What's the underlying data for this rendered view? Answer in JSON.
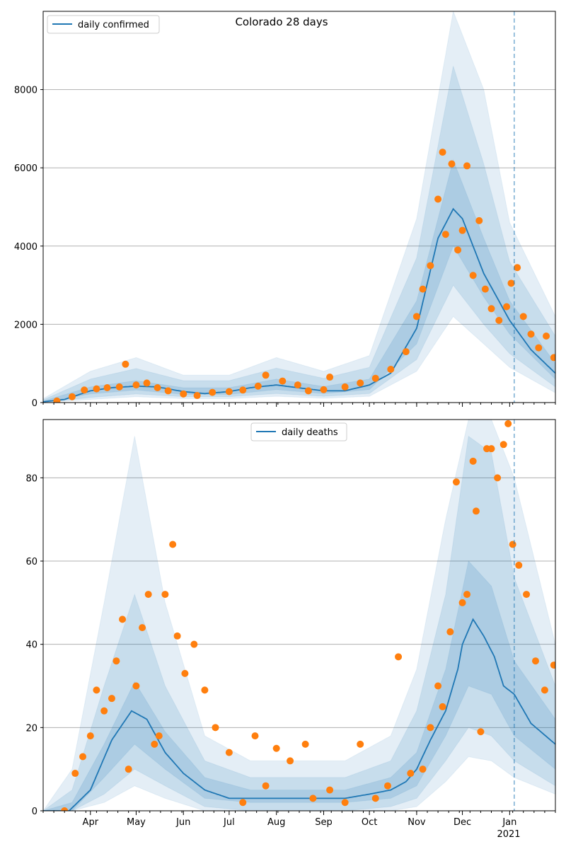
{
  "figure": {
    "title": "Colorado 28 days",
    "colors": {
      "line": "#1f77b4",
      "points": "#ff7f0e",
      "band": "#1f77b4",
      "grid": "#b0b0b0",
      "projection": "#1f77b4"
    }
  },
  "chart_data": [
    {
      "type": "line",
      "title": "Colorado 28 days",
      "xlabel": "",
      "ylabel": "",
      "x_range": [
        "2020-03-01",
        "2021-01-31"
      ],
      "ylim": [
        0,
        10000
      ],
      "yticks": [
        0,
        2000,
        4000,
        6000,
        8000
      ],
      "xticks_shown": false,
      "grid": "y",
      "legend": {
        "placement": "top-left",
        "entries": [
          "daily confirmed"
        ]
      },
      "projection_start": "2021-01-04",
      "series": [
        {
          "name": "daily confirmed",
          "kind": "line",
          "x": [
            "2020-03-01",
            "2020-03-15",
            "2020-04-01",
            "2020-04-15",
            "2020-05-01",
            "2020-05-15",
            "2020-06-01",
            "2020-06-15",
            "2020-07-01",
            "2020-07-15",
            "2020-08-01",
            "2020-08-15",
            "2020-09-01",
            "2020-09-15",
            "2020-10-01",
            "2020-10-15",
            "2020-11-01",
            "2020-11-15",
            "2020-11-25",
            "2020-12-01",
            "2020-12-15",
            "2021-01-01",
            "2021-01-15",
            "2021-01-31"
          ],
          "values": [
            20,
            80,
            300,
            380,
            420,
            400,
            280,
            230,
            280,
            380,
            450,
            380,
            300,
            300,
            450,
            750,
            1900,
            4200,
            4950,
            4700,
            3300,
            2100,
            1350,
            750
          ]
        },
        {
          "name": "",
          "kind": "band-50",
          "x": [
            "2020-03-01",
            "2020-04-01",
            "2020-05-01",
            "2020-06-01",
            "2020-07-01",
            "2020-08-01",
            "2020-09-01",
            "2020-10-01",
            "2020-11-01",
            "2020-11-25",
            "2020-12-15",
            "2021-01-01",
            "2021-01-31"
          ],
          "low": [
            10,
            220,
            320,
            210,
            210,
            330,
            230,
            330,
            1500,
            4000,
            2700,
            1750,
            600
          ],
          "high": [
            40,
            400,
            560,
            380,
            380,
            600,
            410,
            600,
            2600,
            6200,
            4200,
            2600,
            1000
          ]
        },
        {
          "name": "",
          "kind": "band-90",
          "x": [
            "2020-03-01",
            "2020-04-01",
            "2020-05-01",
            "2020-06-01",
            "2020-07-01",
            "2020-08-01",
            "2020-09-01",
            "2020-10-01",
            "2020-11-01",
            "2020-11-25",
            "2020-12-15",
            "2021-01-01",
            "2021-01-31"
          ],
          "low": [
            0,
            130,
            220,
            150,
            150,
            230,
            160,
            230,
            1100,
            3000,
            2000,
            1250,
            400
          ],
          "high": [
            70,
            600,
            870,
            560,
            560,
            880,
            620,
            900,
            3700,
            8600,
            6100,
            3600,
            1700
          ]
        },
        {
          "name": "",
          "kind": "band-98",
          "x": [
            "2020-03-01",
            "2020-04-01",
            "2020-05-01",
            "2020-06-01",
            "2020-07-01",
            "2020-08-01",
            "2020-09-01",
            "2020-10-01",
            "2020-11-01",
            "2020-11-25",
            "2020-12-15",
            "2021-01-01",
            "2021-01-31"
          ],
          "low": [
            0,
            80,
            150,
            100,
            100,
            160,
            110,
            160,
            800,
            2200,
            1500,
            900,
            250
          ],
          "high": [
            100,
            800,
            1150,
            700,
            700,
            1150,
            800,
            1200,
            4700,
            10000,
            8000,
            4600,
            2200
          ]
        },
        {
          "name": "",
          "kind": "scatter",
          "x": [
            "2020-03-10",
            "2020-03-20",
            "2020-03-28",
            "2020-04-05",
            "2020-04-12",
            "2020-04-20",
            "2020-04-24",
            "2020-05-01",
            "2020-05-08",
            "2020-05-15",
            "2020-05-22",
            "2020-06-01",
            "2020-06-10",
            "2020-06-20",
            "2020-07-01",
            "2020-07-10",
            "2020-07-20",
            "2020-07-25",
            "2020-08-05",
            "2020-08-15",
            "2020-08-22",
            "2020-09-01",
            "2020-09-05",
            "2020-09-15",
            "2020-09-25",
            "2020-10-05",
            "2020-10-15",
            "2020-10-25",
            "2020-11-01",
            "2020-11-05",
            "2020-11-10",
            "2020-11-15",
            "2020-11-18",
            "2020-11-20",
            "2020-11-24",
            "2020-11-28",
            "2020-12-01",
            "2020-12-04",
            "2020-12-08",
            "2020-12-12",
            "2020-12-16",
            "2020-12-20",
            "2020-12-25",
            "2020-12-30",
            "2021-01-02",
            "2021-01-06",
            "2021-01-10",
            "2021-01-15",
            "2021-01-20",
            "2021-01-25",
            "2021-01-30"
          ],
          "values": [
            40,
            150,
            320,
            350,
            380,
            400,
            980,
            450,
            500,
            380,
            300,
            220,
            180,
            260,
            280,
            320,
            420,
            700,
            550,
            450,
            300,
            330,
            650,
            400,
            500,
            620,
            850,
            1300,
            2200,
            2900,
            3500,
            5200,
            6400,
            4300,
            6100,
            3900,
            4400,
            6050,
            3250,
            4650,
            2900,
            2400,
            2100,
            2450,
            3050,
            3450,
            2200,
            1750,
            1400,
            1700,
            1150
          ]
        }
      ]
    },
    {
      "type": "line",
      "title": "",
      "xlabel": "",
      "ylabel": "",
      "x_range": [
        "2020-03-01",
        "2021-01-31"
      ],
      "ylim": [
        0,
        94
      ],
      "yticks": [
        0,
        20,
        40,
        60,
        80
      ],
      "xticks": [
        "Apr",
        "May",
        "Jun",
        "Jul",
        "Aug",
        "Sep",
        "Oct",
        "Nov",
        "Dec",
        "Jan"
      ],
      "xticks_dates": [
        "2020-04-01",
        "2020-05-01",
        "2020-06-01",
        "2020-07-01",
        "2020-08-01",
        "2020-09-01",
        "2020-10-01",
        "2020-11-01",
        "2020-12-01",
        "2021-01-01"
      ],
      "year_label": "2021",
      "grid": "y",
      "legend": {
        "placement": "top-center",
        "entries": [
          "daily deaths"
        ]
      },
      "projection_start": "2021-01-04",
      "series": [
        {
          "name": "daily deaths",
          "kind": "line",
          "x": [
            "2020-03-01",
            "2020-03-18",
            "2020-04-01",
            "2020-04-15",
            "2020-04-28",
            "2020-05-08",
            "2020-05-20",
            "2020-06-01",
            "2020-06-15",
            "2020-07-01",
            "2020-07-15",
            "2020-08-01",
            "2020-08-15",
            "2020-09-01",
            "2020-09-15",
            "2020-10-01",
            "2020-10-15",
            "2020-10-25",
            "2020-11-01",
            "2020-11-10",
            "2020-11-20",
            "2020-11-28",
            "2020-12-01",
            "2020-12-08",
            "2020-12-15",
            "2020-12-22",
            "2020-12-28",
            "2021-01-04",
            "2021-01-15",
            "2021-01-31"
          ],
          "values": [
            0,
            0,
            5,
            17,
            24,
            22,
            14,
            9,
            5,
            3,
            3,
            3,
            3,
            3,
            3,
            4,
            5,
            7,
            10,
            17,
            24,
            34,
            40,
            46,
            42,
            37,
            30,
            28,
            21,
            16
          ]
        },
        {
          "name": "",
          "kind": "band-50",
          "x": [
            "2020-03-01",
            "2020-03-20",
            "2020-04-10",
            "2020-04-30",
            "2020-05-20",
            "2020-06-15",
            "2020-07-15",
            "2020-08-15",
            "2020-09-15",
            "2020-10-15",
            "2020-11-01",
            "2020-11-20",
            "2020-12-05",
            "2020-12-20",
            "2021-01-04",
            "2021-01-31"
          ],
          "low": [
            0,
            0,
            8,
            16,
            10,
            3,
            2,
            2,
            2,
            3,
            6,
            18,
            30,
            28,
            18,
            10
          ],
          "high": [
            0,
            2,
            16,
            31,
            19,
            8,
            5,
            5,
            5,
            8,
            14,
            34,
            60,
            54,
            36,
            22
          ]
        },
        {
          "name": "",
          "kind": "band-90",
          "x": [
            "2020-03-01",
            "2020-03-20",
            "2020-04-10",
            "2020-04-30",
            "2020-05-20",
            "2020-06-15",
            "2020-07-15",
            "2020-08-15",
            "2020-09-15",
            "2020-10-15",
            "2020-11-01",
            "2020-11-20",
            "2020-12-05",
            "2020-12-20",
            "2021-01-04",
            "2021-01-31"
          ],
          "low": [
            0,
            0,
            4,
            10,
            6,
            1,
            0,
            0,
            0,
            1,
            3,
            12,
            20,
            18,
            12,
            6
          ],
          "high": [
            0,
            5,
            30,
            52,
            30,
            12,
            8,
            8,
            8,
            12,
            24,
            52,
            90,
            86,
            56,
            30
          ]
        },
        {
          "name": "",
          "kind": "band-98",
          "x": [
            "2020-03-01",
            "2020-03-20",
            "2020-04-10",
            "2020-04-30",
            "2020-05-20",
            "2020-06-15",
            "2020-07-15",
            "2020-08-15",
            "2020-09-15",
            "2020-10-15",
            "2020-11-01",
            "2020-11-20",
            "2020-12-05",
            "2020-12-20",
            "2021-01-04",
            "2021-01-31"
          ],
          "low": [
            0,
            0,
            2,
            6,
            3,
            0,
            0,
            0,
            0,
            0,
            1,
            7,
            13,
            12,
            8,
            4
          ],
          "high": [
            0,
            10,
            50,
            90,
            50,
            18,
            12,
            12,
            12,
            18,
            34,
            70,
            94,
            94,
            80,
            40
          ]
        },
        {
          "name": "",
          "kind": "scatter",
          "x": [
            "2020-03-15",
            "2020-03-22",
            "2020-03-27",
            "2020-04-01",
            "2020-04-05",
            "2020-04-10",
            "2020-04-15",
            "2020-04-18",
            "2020-04-22",
            "2020-04-26",
            "2020-05-01",
            "2020-05-05",
            "2020-05-09",
            "2020-05-13",
            "2020-05-16",
            "2020-05-20",
            "2020-05-25",
            "2020-05-28",
            "2020-06-02",
            "2020-06-08",
            "2020-06-15",
            "2020-06-22",
            "2020-07-01",
            "2020-07-10",
            "2020-07-18",
            "2020-07-25",
            "2020-08-01",
            "2020-08-10",
            "2020-08-20",
            "2020-08-25",
            "2020-09-05",
            "2020-09-15",
            "2020-09-25",
            "2020-10-05",
            "2020-10-13",
            "2020-10-20",
            "2020-10-28",
            "2020-11-05",
            "2020-11-10",
            "2020-11-15",
            "2020-11-18",
            "2020-11-23",
            "2020-11-27",
            "2020-12-01",
            "2020-12-04",
            "2020-12-08",
            "2020-12-10",
            "2020-12-13",
            "2020-12-17",
            "2020-12-20",
            "2020-12-24",
            "2020-12-28",
            "2020-12-31",
            "2021-01-03",
            "2021-01-07",
            "2021-01-12",
            "2021-01-18",
            "2021-01-24",
            "2021-01-30"
          ],
          "values": [
            0,
            9,
            13,
            18,
            29,
            24,
            27,
            36,
            46,
            10,
            30,
            44,
            52,
            16,
            18,
            52,
            64,
            42,
            33,
            40,
            29,
            20,
            14,
            2,
            18,
            6,
            15,
            12,
            16,
            3,
            5,
            2,
            16,
            3,
            6,
            37,
            9,
            10,
            20,
            30,
            25,
            43,
            79,
            50,
            52,
            84,
            72,
            19,
            87,
            87,
            80,
            88,
            93,
            64,
            59,
            52,
            36,
            29,
            35
          ]
        }
      ]
    }
  ]
}
